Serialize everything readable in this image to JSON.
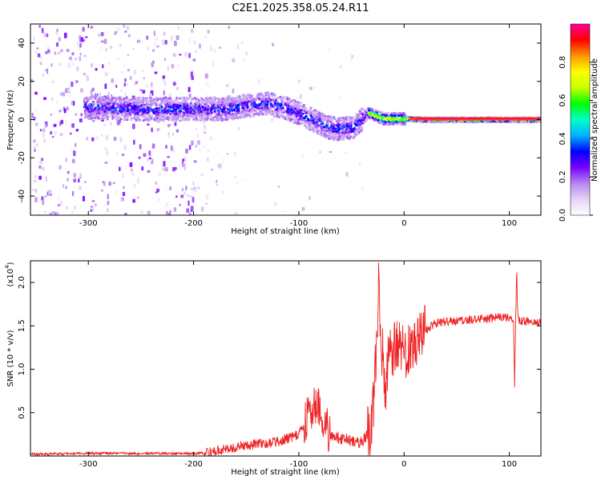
{
  "title": "C2E1.2025.358.05.24.R11",
  "chart_data": [
    {
      "type": "heatmap",
      "xlabel": "Height of straight line (km)",
      "ylabel": "Frequency (Hz)",
      "xlim": [
        -355,
        130
      ],
      "ylim": [
        -50,
        50
      ],
      "xticks": [
        -300,
        -200,
        -100,
        0,
        100
      ],
      "yticks": [
        -40,
        -20,
        0,
        20,
        40
      ],
      "colorbar": {
        "label": "Normalized spectral amplitude",
        "range": [
          0,
          1
        ],
        "ticks": [
          "0.0",
          "0.2",
          "0.4",
          "0.6",
          "0.8"
        ],
        "stops": [
          "#ffffff",
          "#e6d2f5",
          "#b487f0",
          "#7800ff",
          "#0000ff",
          "#00b4ff",
          "#00ffc8",
          "#00ff00",
          "#c8ff00",
          "#ffff00",
          "#ff9600",
          "#ff0000",
          "#ff0096"
        ]
      },
      "ridge": [
        {
          "x": -300,
          "y": 7
        },
        {
          "x": -250,
          "y": 6
        },
        {
          "x": -200,
          "y": 6
        },
        {
          "x": -170,
          "y": 6
        },
        {
          "x": -150,
          "y": 8
        },
        {
          "x": -130,
          "y": 9
        },
        {
          "x": -110,
          "y": 6
        },
        {
          "x": -90,
          "y": 1
        },
        {
          "x": -70,
          "y": -4
        },
        {
          "x": -50,
          "y": -4
        },
        {
          "x": -35,
          "y": 4
        },
        {
          "x": -20,
          "y": 1
        },
        {
          "x": 0,
          "y": 1
        },
        {
          "x": 20,
          "y": 0.5
        },
        {
          "x": 130,
          "y": 0.5
        }
      ]
    },
    {
      "type": "line",
      "xlabel": "Height of straight line (km)",
      "ylabel": "SNR (10 * v/v)",
      "yscale_label": "(x10",
      "yscale_exp": "4",
      "xlim": [
        -355,
        130
      ],
      "ylim": [
        0,
        2.25
      ],
      "xticks": [
        -300,
        -200,
        -100,
        0,
        100
      ],
      "yticks": [
        "0.5",
        "1.0",
        "1.5",
        "2.0"
      ],
      "color": "#ee2222",
      "series": [
        {
          "x": [
            -355,
            -300,
            -250,
            -200,
            -180,
            -160,
            -140,
            -120,
            -100,
            -90,
            -85,
            -80,
            -75,
            -70,
            -60,
            -50,
            -40,
            -32,
            -28,
            -26,
            -24,
            -22,
            -20,
            -18,
            -15,
            -10,
            -5,
            0,
            5,
            10,
            20,
            30,
            40,
            50,
            60,
            70,
            80,
            90,
            100,
            104,
            105,
            106,
            107,
            108,
            110,
            120,
            130
          ],
          "y": [
            0.02,
            0.03,
            0.03,
            0.03,
            0.05,
            0.1,
            0.14,
            0.16,
            0.25,
            0.48,
            0.62,
            0.5,
            0.35,
            0.25,
            0.2,
            0.18,
            0.15,
            0.3,
            0.8,
            1.4,
            1.96,
            1.0,
            1.2,
            0.8,
            1.1,
            1.25,
            1.35,
            1.2,
            1.32,
            1.38,
            1.45,
            1.53,
            1.55,
            1.56,
            1.57,
            1.58,
            1.58,
            1.6,
            1.6,
            1.58,
            0.8,
            1.5,
            2.2,
            1.6,
            1.55,
            1.55,
            1.54
          ]
        }
      ]
    }
  ]
}
